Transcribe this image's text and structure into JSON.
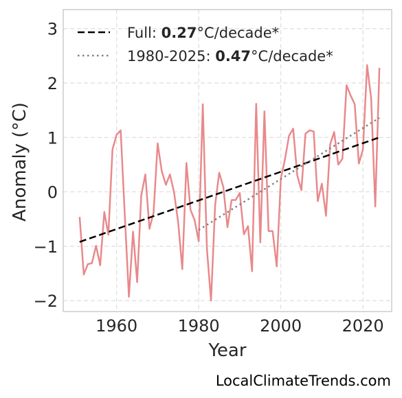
{
  "chart_data": {
    "type": "line",
    "xlabel": "Year",
    "ylabel": "Anomaly (°C)",
    "xlim": [
      1947,
      2027
    ],
    "ylim": [
      -2.2,
      3.35
    ],
    "x_ticks": [
      1960,
      1980,
      2000,
      2020
    ],
    "y_ticks": [
      -2,
      -1,
      0,
      1,
      2,
      3
    ],
    "y_tick_labels": [
      "−2",
      "−1",
      "0",
      "1",
      "2",
      "3"
    ],
    "grid": true,
    "legend_position": "top-left",
    "colors": {
      "anomaly": "#e8898b",
      "full_trend": "#000000",
      "recent_trend": "#808080",
      "grid": "#dddddd",
      "frame": "#cccccc"
    },
    "series": [
      {
        "x": [
          1951,
          1952,
          1953,
          1954,
          1955,
          1956,
          1957,
          1958,
          1959,
          1960,
          1961,
          1962,
          1963,
          1964,
          1965,
          1966,
          1967,
          1968,
          1969,
          1970,
          1971,
          1972,
          1973,
          1974,
          1975,
          1976,
          1977,
          1978,
          1979,
          1980,
          1981,
          1982,
          1983,
          1984,
          1985,
          1986,
          1987,
          1988,
          1989,
          1990,
          1991,
          1992,
          1993,
          1994,
          1995,
          1996,
          1997,
          1998,
          1999,
          2000,
          2001,
          2002,
          2003,
          2004,
          2005,
          2006,
          2007,
          2008,
          2009,
          2010,
          2011,
          2012,
          2013,
          2014,
          2015,
          2016,
          2017,
          2018,
          2019,
          2020,
          2021,
          2022,
          2023,
          2024
        ],
        "values": [
          -0.46,
          -1.52,
          -1.33,
          -1.31,
          -0.99,
          -1.35,
          -0.37,
          -0.79,
          0.78,
          1.05,
          1.13,
          -0.43,
          -1.93,
          -0.73,
          -1.66,
          -0.07,
          0.32,
          -0.68,
          -0.38,
          0.89,
          0.38,
          0.13,
          0.32,
          -0.01,
          -0.56,
          -1.42,
          0.53,
          -0.33,
          -0.52,
          -0.91,
          1.61,
          -1.05,
          -2.0,
          -0.24,
          0.35,
          0.09,
          -0.65,
          -0.15,
          -0.15,
          -0.02,
          -0.78,
          -0.63,
          -1.46,
          1.62,
          -0.93,
          1.48,
          -0.72,
          -0.72,
          -1.37,
          0.25,
          0.6,
          1.03,
          1.16,
          0.3,
          0.03,
          1.07,
          1.13,
          1.11,
          -0.17,
          0.15,
          -0.44,
          0.87,
          1.1,
          0.5,
          0.61,
          1.96,
          1.77,
          1.61,
          0.52,
          0.78,
          2.33,
          1.72,
          -0.27,
          2.28
        ]
      }
    ],
    "trends": [
      {
        "label_prefix": "Full: ",
        "label_value": "0.27",
        "label_suffix": "°C/decade*",
        "style": "dashed",
        "x_range": [
          1951,
          2024
        ],
        "y_range": [
          -0.92,
          1.0
        ]
      },
      {
        "label_prefix": "1980-2025: ",
        "label_value": "0.47",
        "label_suffix": "°C/decade*",
        "style": "dotted",
        "x_range": [
          1980,
          2024
        ],
        "y_range": [
          -0.7,
          1.36
        ]
      }
    ]
  },
  "credit": "LocalClimateTrends.com"
}
